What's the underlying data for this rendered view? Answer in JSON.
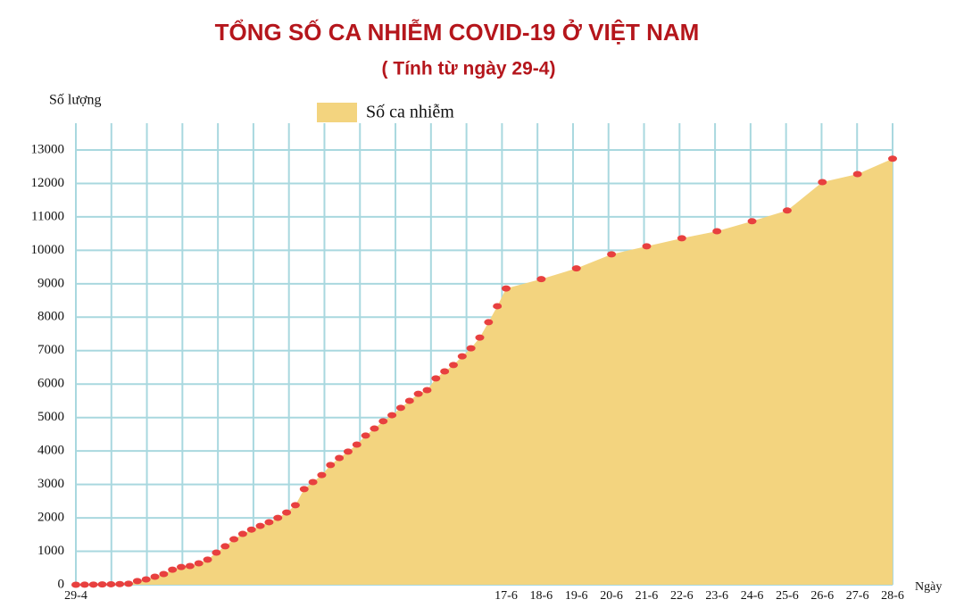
{
  "chart_data": {
    "type": "area",
    "title": "TỔNG SỐ CA NHIỄM COVID-19 Ở VIỆT NAM",
    "subtitle": "( Tính từ ngày 29-4)",
    "y_label": "Số lượng",
    "x_label": "Ngày",
    "categories": [
      "29-4",
      null,
      null,
      null,
      null,
      null,
      null,
      null,
      null,
      null,
      null,
      null,
      null,
      null,
      null,
      null,
      null,
      null,
      null,
      null,
      null,
      null,
      null,
      null,
      null,
      null,
      null,
      null,
      null,
      null,
      null,
      null,
      null,
      null,
      null,
      null,
      null,
      null,
      null,
      null,
      null,
      null,
      null,
      null,
      null,
      null,
      null,
      null,
      null,
      "17-6",
      "18-6",
      "19-6",
      "20-6",
      "21-6",
      "22-6",
      "23-6",
      "24-6",
      "25-6",
      "26-6",
      "27-6",
      "28-6"
    ],
    "series": [
      {
        "name": "Số ca nhiễm",
        "color": "#f3d47f",
        "marker_color": "#e8403f",
        "values": [
          0,
          2,
          5,
          10,
          15,
          20,
          30,
          110,
          160,
          240,
          320,
          450,
          530,
          560,
          640,
          750,
          960,
          1150,
          1360,
          1520,
          1650,
          1760,
          1870,
          2000,
          2160,
          2380,
          2860,
          3070,
          3280,
          3580,
          3790,
          3980,
          4190,
          4460,
          4670,
          4890,
          5070,
          5290,
          5500,
          5710,
          5820,
          6170,
          6380,
          6570,
          6830,
          7070,
          7390,
          7850,
          8330,
          8860,
          9140,
          9460,
          9880,
          10120,
          10360,
          10570,
          10870,
          11190,
          12040,
          12280,
          12740
        ]
      }
    ],
    "ylim": [
      0,
      13000
    ],
    "yticks": [
      0,
      1000,
      2000,
      3000,
      4000,
      5000,
      6000,
      7000,
      8000,
      9000,
      10000,
      11000,
      12000,
      13000
    ],
    "grid": true
  }
}
